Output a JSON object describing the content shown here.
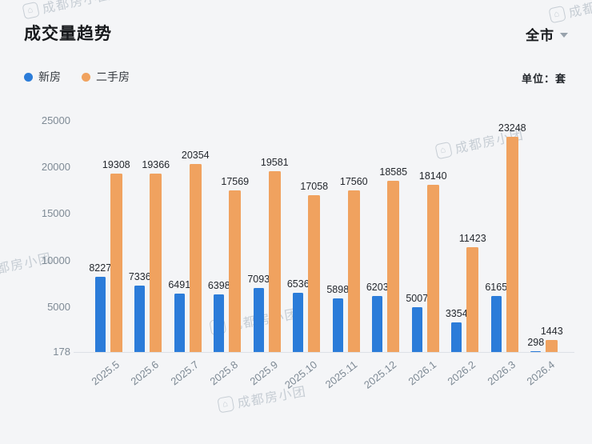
{
  "header": {
    "title": "成交量趋势",
    "scope_label": "全市",
    "unit_label": "单位：套"
  },
  "legend": [
    {
      "label": "新房",
      "color": "#2b7cd9"
    },
    {
      "label": "二手房",
      "color": "#f0a25f"
    }
  ],
  "watermark": {
    "text": "成都房小团"
  },
  "chart_data": {
    "type": "bar",
    "title": "成交量趋势",
    "unit": "套",
    "categories": [
      "2025.5",
      "2025.6",
      "2025.7",
      "2025.8",
      "2025.9",
      "2025.10",
      "2025.11",
      "2025.12",
      "2026.1",
      "2026.2",
      "2026.3",
      "2026.4"
    ],
    "series": [
      {
        "name": "新房",
        "color": "#2b7cd9",
        "values": [
          8227,
          7336,
          6491,
          6398,
          7093,
          6536,
          5898,
          6203,
          5007,
          3354,
          6165,
          298
        ]
      },
      {
        "name": "二手房",
        "color": "#f0a25f",
        "values": [
          19308,
          19366,
          20354,
          17569,
          19581,
          17058,
          17560,
          18585,
          18140,
          11423,
          23248,
          1443
        ]
      }
    ],
    "xlabel": "",
    "ylabel": "",
    "y_ticks": [
      25000,
      20000,
      15000,
      10000,
      5000,
      178
    ],
    "y_baseline": 178,
    "ylim": [
      178,
      26000
    ],
    "grid": false,
    "legend_position": "top-left",
    "value_labels": true
  }
}
